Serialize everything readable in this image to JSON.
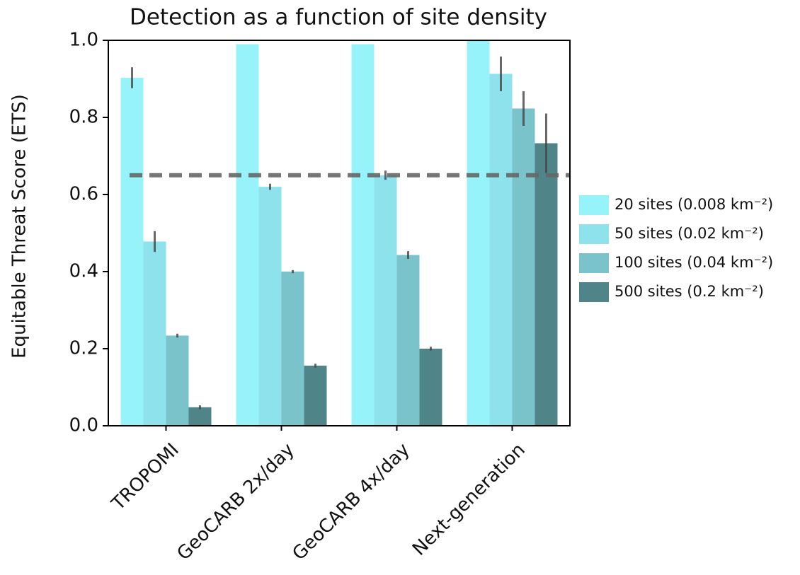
{
  "chart_data": {
    "type": "bar",
    "title": "Detection as a function of site density",
    "y_label": "Equitable Threat Score (ETS)",
    "categories": [
      "TROPOMI",
      "GeoCARB 2x/day",
      "GeoCARB 4x/day",
      "Next-generation"
    ],
    "series": [
      {
        "name": "20 sites (0.008 km⁻²)",
        "color": "#97f3fa",
        "values": [
          0.903,
          0.99,
          0.99,
          1.0
        ],
        "errors": [
          0.027,
          null,
          null,
          null
        ]
      },
      {
        "name": "50 sites (0.02 km⁻²)",
        "color": "#8ee2eb",
        "values": [
          0.478,
          0.62,
          0.65,
          0.913
        ],
        "errors": [
          0.027,
          0.008,
          0.012,
          0.045
        ]
      },
      {
        "name": "100 sites (0.04 km⁻²)",
        "color": "#7ac3cb",
        "values": [
          0.234,
          0.4,
          0.443,
          0.823
        ],
        "errors": [
          0.005,
          0.004,
          0.01,
          0.045
        ]
      },
      {
        "name": "500 sites (0.2 km⁻²)",
        "color": "#4f8588",
        "values": [
          0.048,
          0.156,
          0.2,
          0.733
        ],
        "errors": [
          0.005,
          0.005,
          0.005,
          0.077
        ]
      }
    ],
    "reference_line": 0.65,
    "ylim": [
      0,
      1.0
    ],
    "yticks": [
      {
        "value": 0,
        "label": "0.0"
      },
      0.2,
      0.4,
      0.6,
      0.8,
      {
        "value": 1.0,
        "label": "1.0"
      }
    ],
    "legend": "right"
  }
}
